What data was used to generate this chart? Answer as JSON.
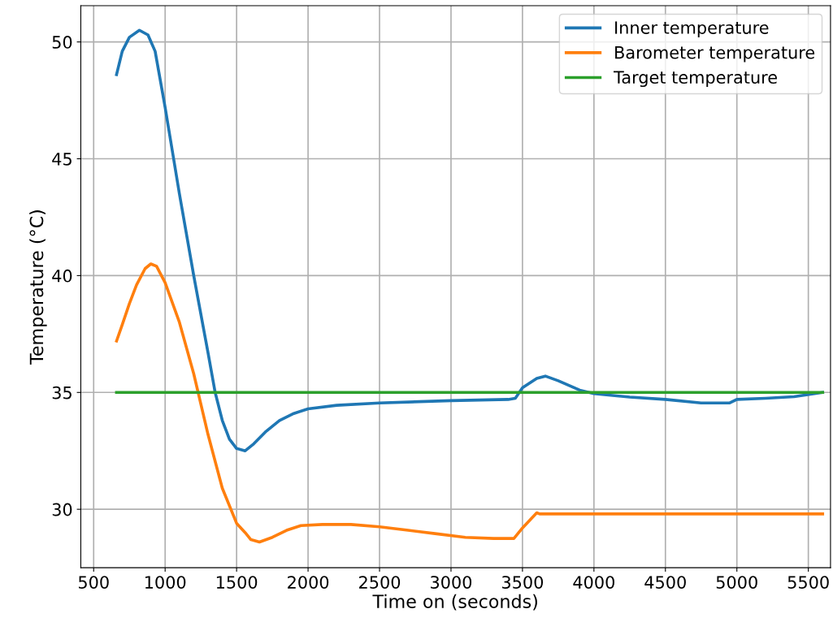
{
  "chart_data": {
    "type": "line",
    "xlabel": "Time on (seconds)",
    "ylabel": "Temperature (°C)",
    "xlim": [
      410,
      5655
    ],
    "ylim": [
      27.5,
      51.55
    ],
    "xticks": [
      500,
      1000,
      1500,
      2000,
      2500,
      3000,
      3500,
      4000,
      4500,
      5000,
      5500
    ],
    "yticks": [
      30,
      35,
      40,
      45,
      50
    ],
    "grid": true,
    "legend": "top right",
    "line_style": "solid",
    "marker": "none",
    "series": [
      {
        "name": "Inner temperature",
        "color": "#1f77b4",
        "x": [
          660,
          700,
          750,
          820,
          880,
          930,
          1000,
          1100,
          1200,
          1300,
          1350,
          1400,
          1450,
          1500,
          1560,
          1620,
          1700,
          1800,
          1900,
          2000,
          2200,
          2500,
          3000,
          3400,
          3450,
          3500,
          3600,
          3660,
          3750,
          3900,
          4000,
          4250,
          4500,
          4750,
          4950,
          5000,
          5200,
          5400,
          5600
        ],
        "values": [
          48.6,
          49.6,
          50.2,
          50.5,
          50.3,
          49.6,
          47.2,
          43.5,
          40.0,
          36.7,
          35.0,
          33.8,
          33.0,
          32.6,
          32.5,
          32.8,
          33.3,
          33.8,
          34.1,
          34.3,
          34.45,
          34.55,
          34.65,
          34.7,
          34.75,
          35.2,
          35.6,
          35.7,
          35.5,
          35.1,
          34.95,
          34.8,
          34.7,
          34.55,
          34.55,
          34.7,
          34.75,
          34.82,
          35.0
        ]
      },
      {
        "name": "Barometer temperature",
        "color": "#ff7f0e",
        "x": [
          660,
          700,
          750,
          800,
          860,
          900,
          940,
          1000,
          1100,
          1200,
          1300,
          1400,
          1500,
          1560,
          1600,
          1660,
          1750,
          1850,
          1950,
          2100,
          2300,
          2500,
          2700,
          2900,
          3100,
          3300,
          3440,
          3500,
          3600,
          3620,
          5600
        ],
        "values": [
          37.2,
          37.9,
          38.8,
          39.6,
          40.3,
          40.5,
          40.4,
          39.7,
          38.0,
          35.8,
          33.2,
          30.9,
          29.4,
          29.0,
          28.7,
          28.6,
          28.8,
          29.1,
          29.3,
          29.35,
          29.35,
          29.25,
          29.1,
          28.95,
          28.8,
          28.75,
          28.75,
          29.2,
          29.85,
          29.8,
          29.8
        ]
      },
      {
        "name": "Target temperature",
        "color": "#2ca02c",
        "x": [
          660,
          5600
        ],
        "values": [
          35,
          35
        ]
      }
    ]
  }
}
